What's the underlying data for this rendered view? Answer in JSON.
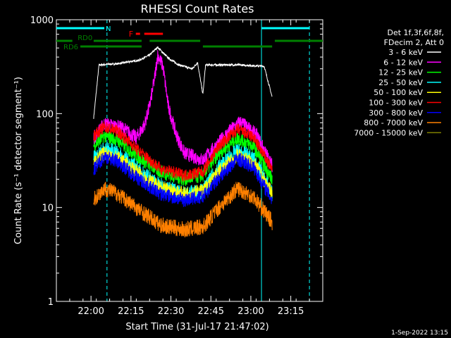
{
  "chart_data": {
    "type": "line",
    "title": "RHESSI Count Rates",
    "xlabel": "Start Time (31-Jul-17 21:47:02)",
    "ylabel": "Count Rate (s⁻¹ detector segment⁻¹)",
    "yscale": "log",
    "ylim": [
      1,
      1000
    ],
    "xlim": [
      "21:47",
      "23:27"
    ],
    "x_ticks": [
      "22:00",
      "22:15",
      "22:30",
      "22:45",
      "23:00",
      "23:15"
    ],
    "y_ticks": [
      "1",
      "10",
      "100",
      "1000"
    ],
    "grid": false,
    "legend_position": "right",
    "legend_header": [
      "Det 1f,3f,6f,8f,",
      "FDecim 2, Att 0"
    ],
    "timestamp": "1-Sep-2022 13:15",
    "data_start": "22:01",
    "data_end": "23:08",
    "orbit_days": [
      [
        "21:47",
        "22:06"
      ],
      [
        "23:04",
        "23:22"
      ]
    ],
    "annotations": [
      {
        "label": "N",
        "color": "#00ffff",
        "start": "21:47",
        "end": "22:05"
      },
      {
        "label": "F",
        "color": "#ff0000",
        "start": "22:20",
        "end": "22:27"
      },
      {
        "label": "RD0",
        "color": "#008000",
        "start": "22:08",
        "end": "22:41"
      },
      {
        "label": "RD6",
        "color": "#008000",
        "start": "21:56",
        "end": "23:08"
      }
    ],
    "series": [
      {
        "name": "3 - 6 keV",
        "color": "#ffffff",
        "x": [
          "22:01",
          "22:03",
          "22:10",
          "22:18",
          "22:22",
          "22:25",
          "22:29",
          "22:33",
          "22:38",
          "22:40",
          "22:42",
          "22:43",
          "22:46",
          "22:55",
          "23:05",
          "23:08"
        ],
        "values": [
          90,
          330,
          340,
          370,
          420,
          510,
          390,
          330,
          300,
          350,
          160,
          330,
          330,
          330,
          320,
          150
        ]
      },
      {
        "name": "6 - 12 keV",
        "color": "#ff00ff",
        "x": [
          "22:01",
          "22:05",
          "22:12",
          "22:17",
          "22:20",
          "22:22",
          "22:24",
          "22:25",
          "22:27",
          "22:29",
          "22:32",
          "22:35",
          "22:42",
          "22:52",
          "22:56",
          "23:02",
          "23:08"
        ],
        "values": [
          55,
          78,
          70,
          55,
          75,
          120,
          250,
          420,
          320,
          120,
          60,
          38,
          32,
          65,
          82,
          60,
          28
        ]
      },
      {
        "name": "12 - 25 keV",
        "color": "#00ff00",
        "x": [
          "22:01",
          "22:05",
          "22:10",
          "22:18",
          "22:26",
          "22:35",
          "22:42",
          "22:48",
          "22:55",
          "23:01",
          "23:08"
        ],
        "values": [
          45,
          58,
          52,
          34,
          24,
          20,
          22,
          38,
          55,
          45,
          20
        ]
      },
      {
        "name": "25 - 50 keV",
        "color": "#00ffff",
        "x": [
          "22:01",
          "22:05",
          "22:10",
          "22:18",
          "22:26",
          "22:35",
          "22:42",
          "22:48",
          "22:55",
          "23:01",
          "23:08"
        ],
        "values": [
          33,
          42,
          38,
          25,
          17,
          14,
          15,
          27,
          40,
          33,
          14
        ]
      },
      {
        "name": "50 - 100 keV",
        "color": "#ffff00",
        "x": [
          "22:01",
          "22:05",
          "22:10",
          "22:18",
          "22:26",
          "22:35",
          "22:42",
          "22:48",
          "22:55",
          "23:01",
          "23:08"
        ],
        "values": [
          30,
          38,
          34,
          23,
          16,
          14,
          15,
          24,
          36,
          30,
          14
        ]
      },
      {
        "name": "100 - 300 keV",
        "color": "#ff0000",
        "x": [
          "22:01",
          "22:05",
          "22:10",
          "22:18",
          "22:26",
          "22:35",
          "22:42",
          "22:48",
          "22:55",
          "23:01",
          "23:08"
        ],
        "values": [
          58,
          72,
          65,
          40,
          26,
          22,
          24,
          45,
          68,
          56,
          25
        ]
      },
      {
        "name": "300 - 800 keV",
        "color": "#0000ff",
        "x": [
          "22:01",
          "22:05",
          "22:10",
          "22:18",
          "22:26",
          "22:35",
          "22:42",
          "22:48",
          "22:55",
          "23:01",
          "23:08"
        ],
        "values": [
          25,
          35,
          31,
          20,
          14,
          12,
          13,
          21,
          33,
          27,
          12
        ]
      },
      {
        "name": "800 - 7000 keV",
        "color": "#ff8000",
        "x": [
          "22:01",
          "22:05",
          "22:10",
          "22:18",
          "22:26",
          "22:35",
          "22:42",
          "22:48",
          "22:55",
          "23:01",
          "23:08"
        ],
        "values": [
          12,
          16,
          14,
          9.5,
          6.5,
          5.8,
          6.2,
          10,
          16,
          13,
          7
        ]
      },
      {
        "name": "7000 - 15000 keV",
        "color": "#808000",
        "x": [],
        "values": []
      }
    ]
  }
}
